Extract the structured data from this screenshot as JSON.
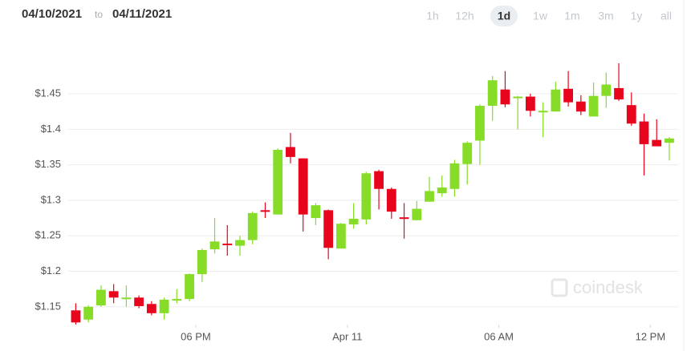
{
  "header": {
    "date_from": "04/10/2021",
    "to": "to",
    "date_to": "04/11/2021",
    "ranges": [
      "1h",
      "12h",
      "1d",
      "1w",
      "1m",
      "3m",
      "1y",
      "all"
    ],
    "selected_range": "1d"
  },
  "watermark": "coindesk",
  "chart_data": {
    "type": "candlestick",
    "x": [
      13.25,
      13.75,
      14.25,
      14.75,
      15.25,
      15.75,
      16.25,
      16.75,
      17.25,
      17.75,
      18.25,
      18.75,
      19.25,
      19.75,
      20.25,
      20.75,
      21.25,
      21.75,
      22.25,
      22.75,
      23.25,
      23.75,
      24.25,
      24.75,
      25.25,
      25.75,
      26.25,
      26.75,
      27.25,
      27.75,
      28.25,
      28.75,
      29.25,
      29.75,
      30.25,
      30.75,
      31.25,
      31.75,
      32.25,
      32.75,
      33.25,
      33.75,
      34.25,
      34.75,
      35.25,
      35.75,
      36.25,
      36.75
    ],
    "open": [
      1.145,
      1.132,
      1.152,
      1.172,
      1.161,
      1.163,
      1.154,
      1.141,
      1.16,
      1.161,
      1.196,
      1.231,
      1.239,
      1.236,
      1.244,
      1.286,
      1.28,
      1.375,
      1.359,
      1.275,
      1.286,
      1.232,
      1.266,
      1.273,
      1.341,
      1.316,
      1.276,
      1.272,
      1.298,
      1.31,
      1.316,
      1.351,
      1.384,
      1.433,
      1.456,
      1.445,
      1.446,
      1.424,
      1.425,
      1.457,
      1.439,
      1.418,
      1.447,
      1.458,
      1.434,
      1.411,
      1.385,
      1.381
    ],
    "high": [
      1.155,
      1.152,
      1.18,
      1.182,
      1.18,
      1.166,
      1.158,
      1.163,
      1.175,
      1.197,
      1.232,
      1.275,
      1.265,
      1.25,
      1.284,
      1.297,
      1.373,
      1.395,
      1.359,
      1.296,
      1.287,
      1.268,
      1.296,
      1.34,
      1.343,
      1.318,
      1.296,
      1.299,
      1.333,
      1.335,
      1.357,
      1.383,
      1.435,
      1.475,
      1.482,
      1.447,
      1.45,
      1.438,
      1.467,
      1.482,
      1.448,
      1.466,
      1.48,
      1.493,
      1.452,
      1.422,
      1.414,
      1.389
    ],
    "low": [
      1.125,
      1.128,
      1.15,
      1.155,
      1.15,
      1.148,
      1.138,
      1.132,
      1.155,
      1.158,
      1.185,
      1.225,
      1.222,
      1.222,
      1.238,
      1.275,
      1.28,
      1.352,
      1.256,
      1.265,
      1.217,
      1.232,
      1.26,
      1.266,
      1.287,
      1.274,
      1.246,
      1.272,
      1.298,
      1.305,
      1.305,
      1.322,
      1.35,
      1.412,
      1.431,
      1.4,
      1.418,
      1.389,
      1.425,
      1.432,
      1.42,
      1.418,
      1.43,
      1.44,
      1.405,
      1.335,
      1.376,
      1.356
    ],
    "close": [
      1.128,
      1.15,
      1.174,
      1.163,
      1.163,
      1.151,
      1.141,
      1.16,
      1.161,
      1.196,
      1.23,
      1.242,
      1.237,
      1.244,
      1.282,
      1.284,
      1.371,
      1.361,
      1.28,
      1.293,
      1.233,
      1.267,
      1.274,
      1.338,
      1.316,
      1.284,
      1.274,
      1.288,
      1.313,
      1.318,
      1.352,
      1.381,
      1.433,
      1.469,
      1.435,
      1.446,
      1.426,
      1.426,
      1.456,
      1.438,
      1.425,
      1.447,
      1.463,
      1.442,
      1.408,
      1.379,
      1.376,
      1.387
    ],
    "up_color": "#86dc26",
    "down_color": "#e8041c",
    "xlim": [
      12.95,
      37.1
    ],
    "xticks": [
      {
        "value": 18,
        "label": "06 PM"
      },
      {
        "value": 24,
        "label": "Apr 11"
      },
      {
        "value": 30,
        "label": "06 AM"
      },
      {
        "value": 36,
        "label": "12 PM"
      }
    ],
    "ylim": [
      1.125,
      1.5
    ],
    "yticks": [
      {
        "value": 1.15,
        "label": "$1.15"
      },
      {
        "value": 1.2,
        "label": "$1.2"
      },
      {
        "value": 1.25,
        "label": "$1.25"
      },
      {
        "value": 1.3,
        "label": "$1.3"
      },
      {
        "value": 1.35,
        "label": "$1.35"
      },
      {
        "value": 1.4,
        "label": "$1.4"
      },
      {
        "value": 1.45,
        "label": "$1.45"
      }
    ],
    "grid": true
  }
}
